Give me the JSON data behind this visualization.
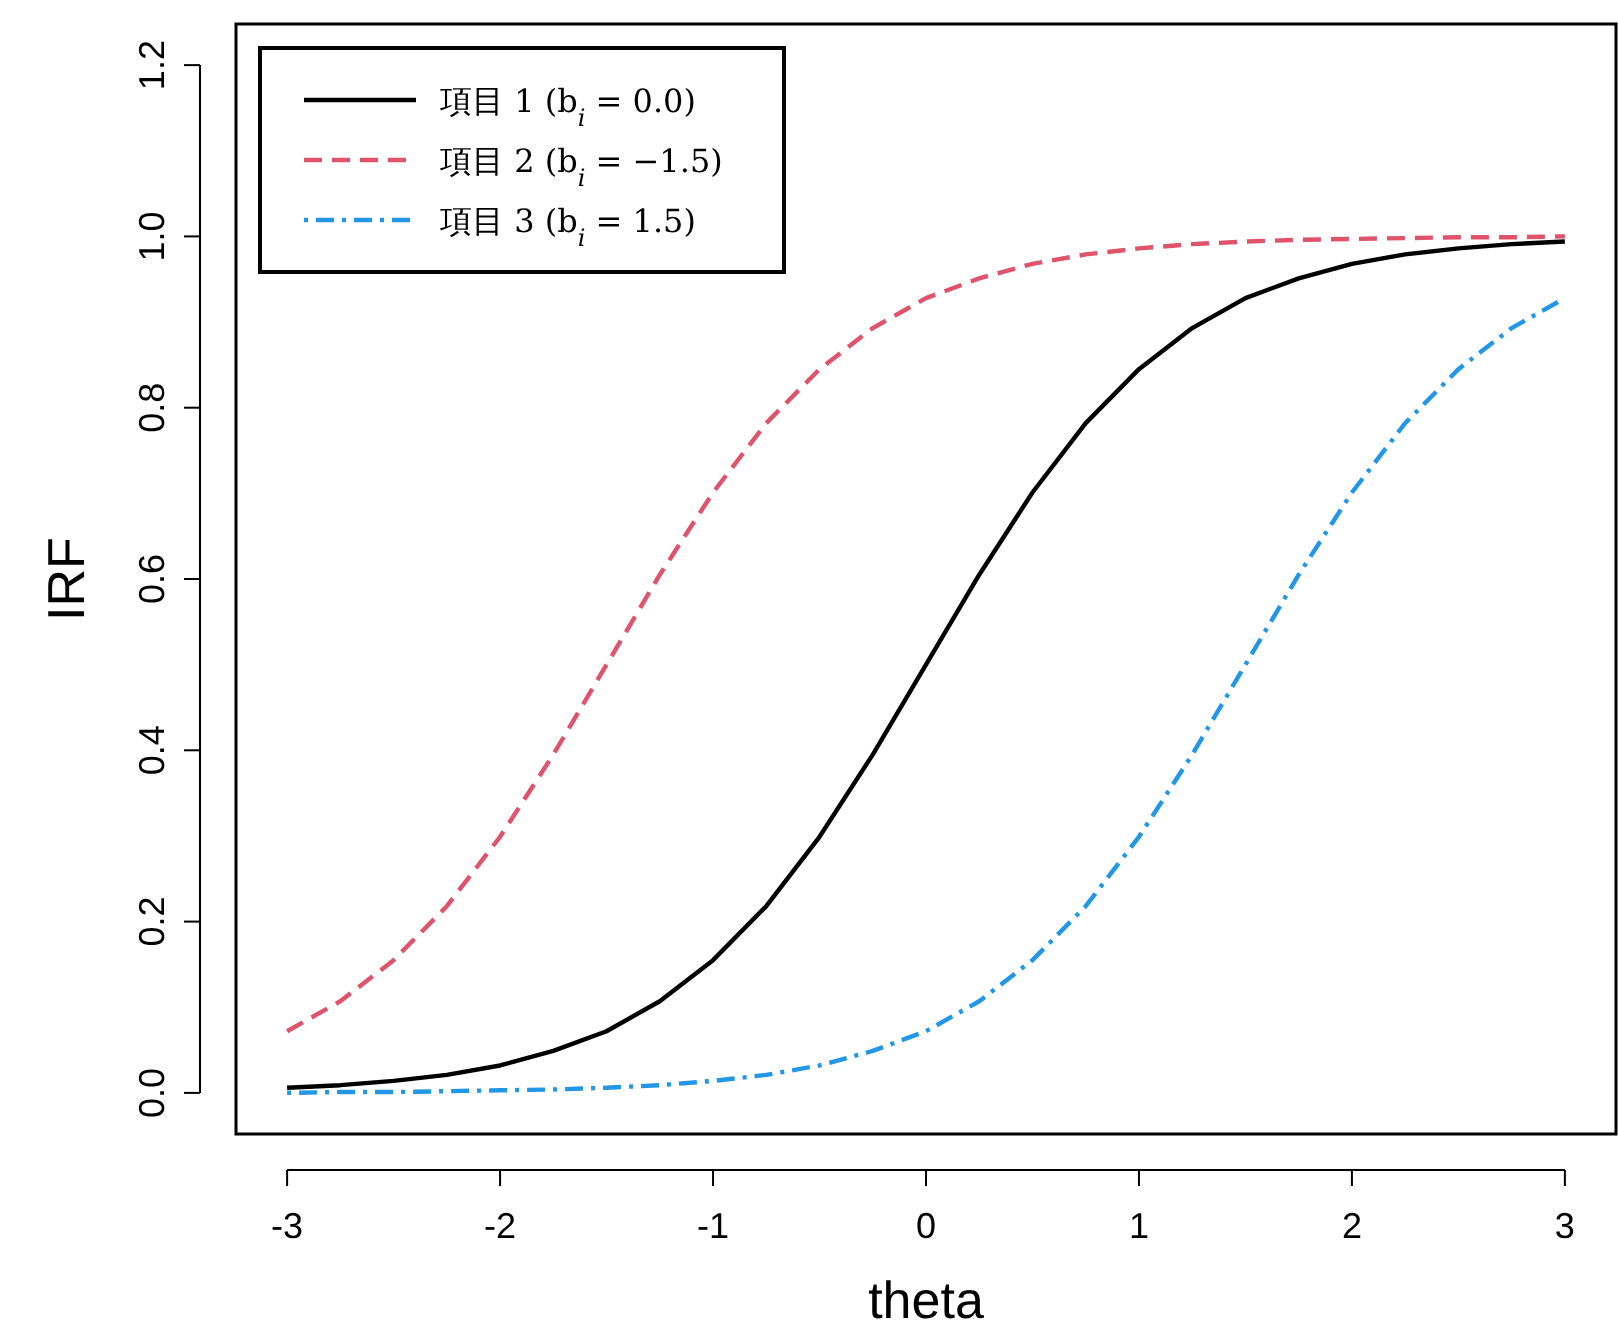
{
  "chart_data": {
    "type": "line",
    "xlabel": "theta",
    "ylabel": "IRF",
    "x": [
      -3,
      -2.75,
      -2.5,
      -2.25,
      -2,
      -1.75,
      -1.5,
      -1.25,
      -1,
      -0.75,
      -0.5,
      -0.25,
      0,
      0.25,
      0.5,
      0.75,
      1,
      1.25,
      1.5,
      1.75,
      2,
      2.25,
      2.5,
      2.75,
      3
    ],
    "series": [
      {
        "name": "項目 1 (b$_{i}$ = 0.0)",
        "color": "#000000",
        "line_style": "solid",
        "values": [
          0.006,
          0.009,
          0.014,
          0.021,
          0.032,
          0.049,
          0.072,
          0.107,
          0.155,
          0.218,
          0.299,
          0.395,
          0.5,
          0.605,
          0.701,
          0.782,
          0.845,
          0.893,
          0.928,
          0.951,
          0.968,
          0.979,
          0.986,
          0.991,
          0.994
        ]
      },
      {
        "name": "項目 2 (b$_{i}$ = −1.5)",
        "color": "#df536b",
        "line_style": "dashed",
        "values": [
          0.072,
          0.107,
          0.155,
          0.218,
          0.299,
          0.395,
          0.5,
          0.605,
          0.701,
          0.782,
          0.845,
          0.893,
          0.928,
          0.951,
          0.968,
          0.979,
          0.986,
          0.991,
          0.994,
          0.996,
          0.997,
          0.998,
          0.999,
          0.999,
          1.0
        ]
      },
      {
        "name": "項目 3 (b$_{i}$ = 1.5)",
        "color": "#2297e6",
        "line_style": "dashdot",
        "values": [
          0.0,
          0.001,
          0.001,
          0.002,
          0.003,
          0.004,
          0.006,
          0.009,
          0.014,
          0.021,
          0.032,
          0.049,
          0.072,
          0.107,
          0.155,
          0.218,
          0.299,
          0.395,
          0.5,
          0.605,
          0.701,
          0.782,
          0.845,
          0.893,
          0.928
        ]
      }
    ],
    "xlim": [
      -3.24,
      3.24
    ],
    "xticks": [
      -3,
      -2,
      -1,
      0,
      1,
      2,
      3
    ],
    "ylim": [
      -0.048,
      1.248
    ],
    "yticks": [
      {
        "value": 0,
        "label": "0.0"
      },
      0.2,
      0.4,
      0.6,
      0.8,
      {
        "value": 1,
        "label": "1.0"
      },
      1.2
    ],
    "legend": "top left",
    "grid": false
  }
}
